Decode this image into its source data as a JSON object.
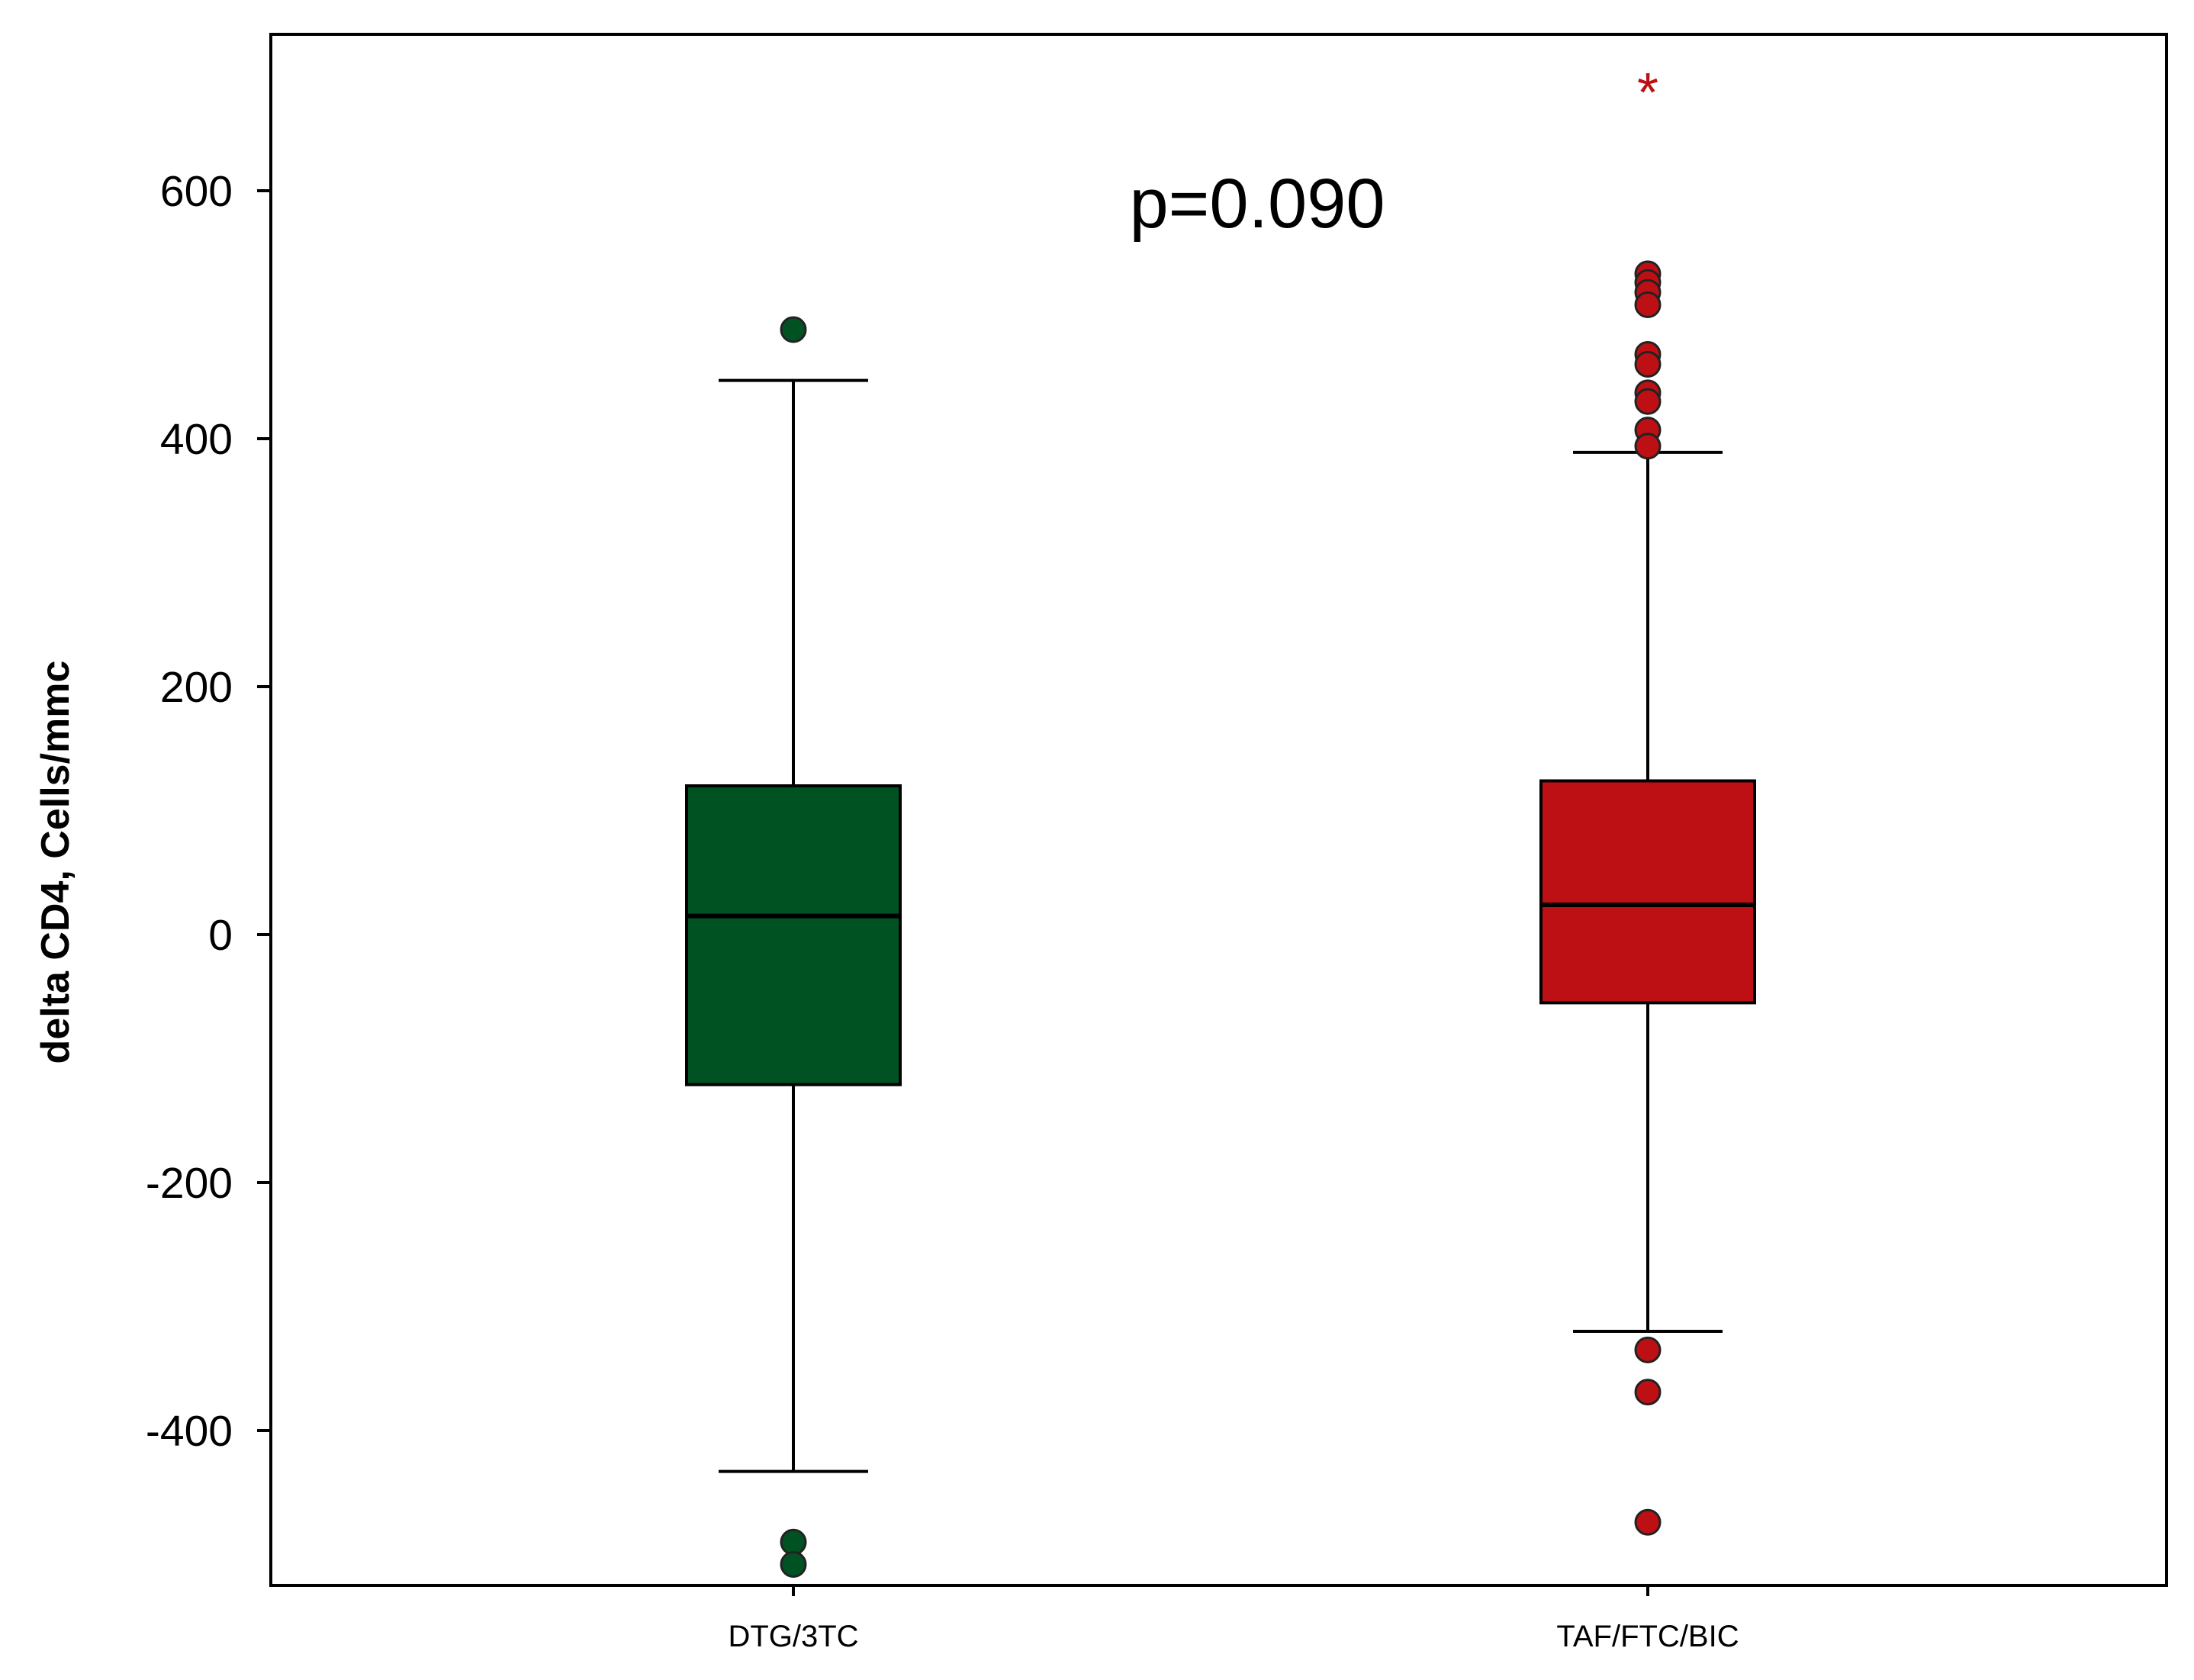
{
  "chart_data": {
    "type": "boxplot",
    "title": "",
    "xlabel": "",
    "ylabel": "delta CD4, Cells/mmc",
    "categories": [
      "DTG/3TC",
      "TAF/FTC/BIC"
    ],
    "ylim": [
      -530,
      760
    ],
    "yticks": [
      600,
      400,
      200,
      0,
      -200,
      -400
    ],
    "ytick_labels": [
      "600",
      "400",
      "200",
      "0",
      "-200",
      "-400"
    ],
    "grid": false,
    "annotation": "p=0.090",
    "boxes": [
      {
        "category": "DTG/3TC",
        "color": "#005222",
        "whisker_low": -433,
        "q1": -121,
        "median": 15,
        "q3": 120,
        "whisker_high": 447,
        "outliers": [
          488,
          -490,
          -508
        ],
        "extremes": []
      },
      {
        "category": "TAF/FTC/BIC",
        "color": "#BD1015",
        "whisker_low": -320,
        "q1": -55,
        "median": 24,
        "q3": 124,
        "whisker_high": 389,
        "outliers": [
          533,
          526,
          518,
          508,
          468,
          460,
          437,
          430,
          407,
          394,
          -335,
          -369,
          -474
        ],
        "extremes": [
          685
        ]
      }
    ]
  }
}
